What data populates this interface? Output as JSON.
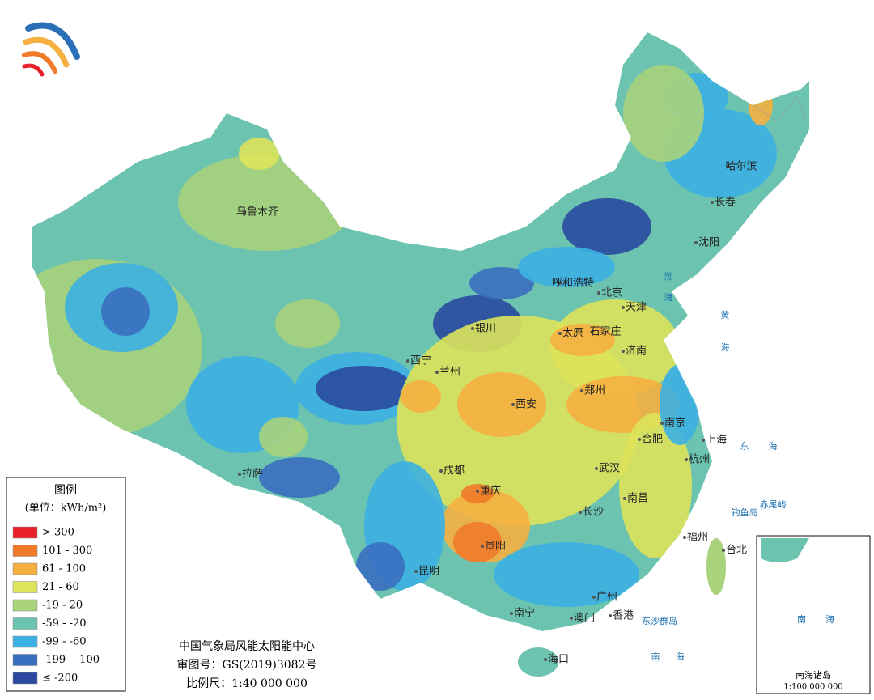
{
  "legend": {
    "title": "图例",
    "unit": "(单位：kWh/m²)",
    "items": [
      {
        "label": "> 300",
        "color": "#e8202a"
      },
      {
        "label": "101 - 300",
        "color": "#f07a2a"
      },
      {
        "label": "61 - 100",
        "color": "#f5b041"
      },
      {
        "label": "21 - 60",
        "color": "#dde35a"
      },
      {
        "label": "-19 - 20",
        "color": "#a8d27c"
      },
      {
        "label": "-59 - -20",
        "color": "#6cc3b0"
      },
      {
        "label": "-99 - -60",
        "color": "#3cb0e2"
      },
      {
        "label": "-199 - -100",
        "color": "#3a6fc0"
      },
      {
        "label": "≤ -200",
        "color": "#2a4aa0"
      }
    ]
  },
  "footer": {
    "org": "中国气象局风能太阳能中心",
    "approval": "审图号：GS(2019)3082号",
    "scale": "比例尺：1:40 000 000"
  },
  "cities": [
    "乌鲁木齐",
    "拉萨",
    "西宁",
    "兰州",
    "银川",
    "呼和浩特",
    "北京",
    "天津",
    "太原",
    "石家庄",
    "济南",
    "郑州",
    "西安",
    "成都",
    "重庆",
    "贵阳",
    "昆明",
    "南宁",
    "广州",
    "澳门",
    "香港",
    "海口",
    "长沙",
    "武汉",
    "南昌",
    "合肥",
    "南京",
    "上海",
    "杭州",
    "福州",
    "台北",
    "哈尔滨",
    "长春",
    "沈阳"
  ],
  "seas": [
    "渤",
    "海",
    "黄",
    "海",
    "东",
    "海",
    "南",
    "海",
    "钓鱼岛",
    "赤尾屿",
    "东沙群岛"
  ],
  "inset": {
    "title": "南海诸岛",
    "scale": "1:100 000 000",
    "sea": [
      "南",
      "海"
    ]
  }
}
